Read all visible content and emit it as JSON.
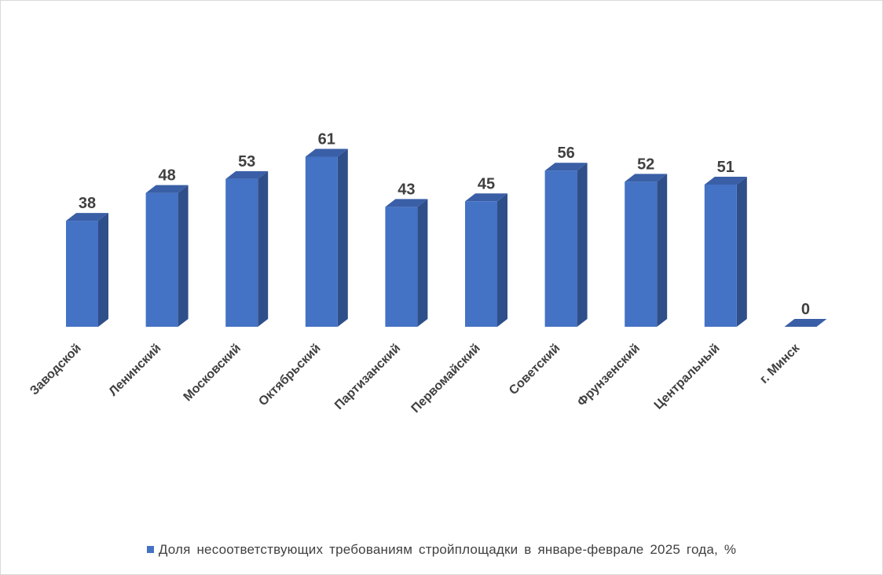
{
  "chart_data": {
    "type": "bar",
    "title": "",
    "xlabel": "",
    "ylabel": "",
    "categories": [
      "Заводской",
      "Ленинский",
      "Московский",
      "Октябрьский",
      "Партизанский",
      "Первомайский",
      "Советский",
      "Фрунзенский",
      "Центральный",
      "г. Минск"
    ],
    "series": [
      {
        "name": "Доля несоответствующих требованиям стройплощадки в январе-феврале 2025 года, %",
        "values": [
          38,
          48,
          53,
          61,
          43,
          45,
          56,
          52,
          51,
          0
        ],
        "color": "#4472C4"
      }
    ],
    "data_labels": true,
    "grid": false,
    "legend": "bottom",
    "ylim": [
      0,
      80
    ]
  },
  "colors": {
    "bar_front": "#4472C4",
    "bar_side": "#2F4F8A",
    "bar_top": "#3A5FA6",
    "label": "#404040"
  }
}
